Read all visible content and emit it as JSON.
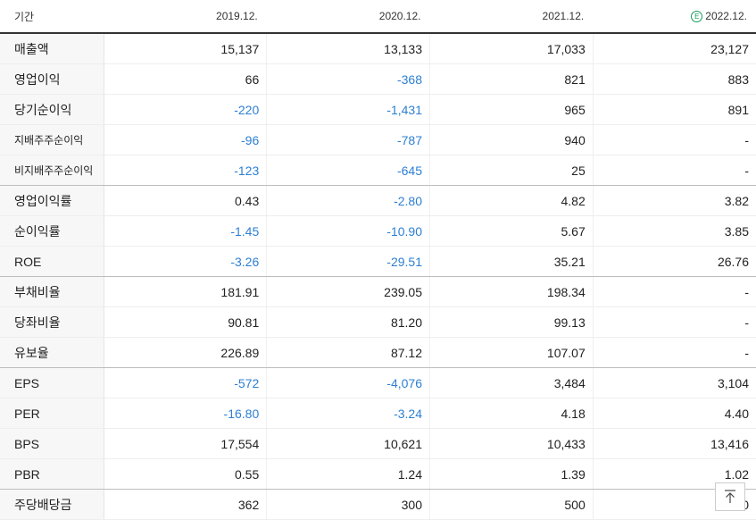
{
  "header": {
    "period_label": "기간",
    "years": [
      "2019.12.",
      "2020.12.",
      "2021.12.",
      "2022.12."
    ],
    "estimate_badge": "E"
  },
  "rows": [
    {
      "label": "매출액",
      "values": [
        "15,137",
        "13,133",
        "17,033",
        "23,127"
      ],
      "negative": [
        false,
        false,
        false,
        false
      ]
    },
    {
      "label": "영업이익",
      "values": [
        "66",
        "-368",
        "821",
        "883"
      ],
      "negative": [
        false,
        true,
        false,
        false
      ]
    },
    {
      "label": "당기순이익",
      "values": [
        "-220",
        "-1,431",
        "965",
        "891"
      ],
      "negative": [
        true,
        true,
        false,
        false
      ]
    },
    {
      "label": "지배주주순이익",
      "values": [
        "-96",
        "-787",
        "940",
        "-"
      ],
      "negative": [
        true,
        true,
        false,
        false
      ]
    },
    {
      "label": "비지배주주순이익",
      "values": [
        "-123",
        "-645",
        "25",
        "-"
      ],
      "negative": [
        true,
        true,
        false,
        false
      ]
    },
    {
      "label": "영업이익률",
      "values": [
        "0.43",
        "-2.80",
        "4.82",
        "3.82"
      ],
      "negative": [
        false,
        true,
        false,
        false
      ]
    },
    {
      "label": "순이익률",
      "values": [
        "-1.45",
        "-10.90",
        "5.67",
        "3.85"
      ],
      "negative": [
        true,
        true,
        false,
        false
      ]
    },
    {
      "label": "ROE",
      "values": [
        "-3.26",
        "-29.51",
        "35.21",
        "26.76"
      ],
      "negative": [
        true,
        true,
        false,
        false
      ]
    },
    {
      "label": "부채비율",
      "values": [
        "181.91",
        "239.05",
        "198.34",
        "-"
      ],
      "negative": [
        false,
        false,
        false,
        false
      ]
    },
    {
      "label": "당좌비율",
      "values": [
        "90.81",
        "81.20",
        "99.13",
        "-"
      ],
      "negative": [
        false,
        false,
        false,
        false
      ]
    },
    {
      "label": "유보율",
      "values": [
        "226.89",
        "87.12",
        "107.07",
        "-"
      ],
      "negative": [
        false,
        false,
        false,
        false
      ]
    },
    {
      "label": "EPS",
      "values": [
        "-572",
        "-4,076",
        "3,484",
        "3,104"
      ],
      "negative": [
        true,
        true,
        false,
        false
      ]
    },
    {
      "label": "PER",
      "values": [
        "-16.80",
        "-3.24",
        "4.18",
        "4.40"
      ],
      "negative": [
        true,
        true,
        false,
        false
      ]
    },
    {
      "label": "BPS",
      "values": [
        "17,554",
        "10,621",
        "10,433",
        "13,416"
      ],
      "negative": [
        false,
        false,
        false,
        false
      ]
    },
    {
      "label": "PBR",
      "values": [
        "0.55",
        "1.24",
        "1.39",
        "1.02"
      ],
      "negative": [
        false,
        false,
        false,
        false
      ]
    },
    {
      "label": "주당배당금",
      "values": [
        "362",
        "300",
        "500",
        "0"
      ],
      "negative": [
        false,
        false,
        false,
        false
      ]
    }
  ],
  "colors": {
    "negative": "#2d7fd3",
    "estimate": "#1a9c5b"
  },
  "scroll_top_icon": "arrow-up-to-top-icon"
}
